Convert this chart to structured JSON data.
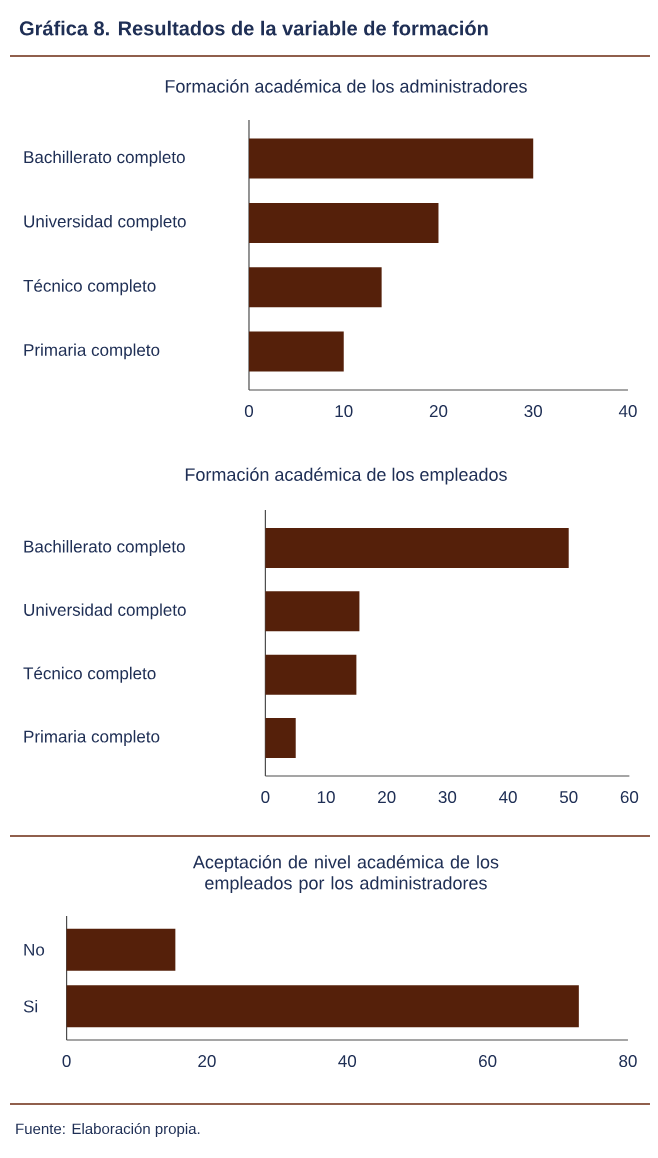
{
  "chart_data": [
    {
      "type": "bar",
      "orientation": "horizontal",
      "title": "Gráfica 8. Resultados de la variable de formación",
      "subtitle": "Formación académica de los administradores",
      "categories": [
        "Bachillerato completo",
        "Universidad completo",
        "Técnico completo",
        "Primaria completo"
      ],
      "values": [
        30,
        20,
        14,
        10
      ],
      "color": "#55200a",
      "xlim": [
        0,
        40
      ],
      "xticks": [
        0,
        10,
        20,
        30,
        40
      ]
    },
    {
      "type": "bar",
      "orientation": "horizontal",
      "title": "Formación académica de los empleados",
      "categories": [
        "Bachillerato completo",
        "Universidad completo",
        "Técnico completo",
        "Primaria completo"
      ],
      "values": [
        50,
        15.5,
        15,
        5
      ],
      "color": "#55200a",
      "xlim": [
        0,
        60
      ],
      "xticks": [
        0,
        10,
        20,
        30,
        40,
        50,
        60
      ]
    },
    {
      "type": "bar",
      "orientation": "horizontal",
      "title": "Aceptación de nivel académica de los empleados por los administradores",
      "categories": [
        "No",
        "Si"
      ],
      "values": [
        15.5,
        73
      ],
      "color": "#55200a",
      "xlim": [
        0,
        80
      ],
      "xticks": [
        0,
        20,
        40,
        60,
        80
      ],
      "annotations": [
        "Fuente: Elaboración propia."
      ]
    }
  ]
}
